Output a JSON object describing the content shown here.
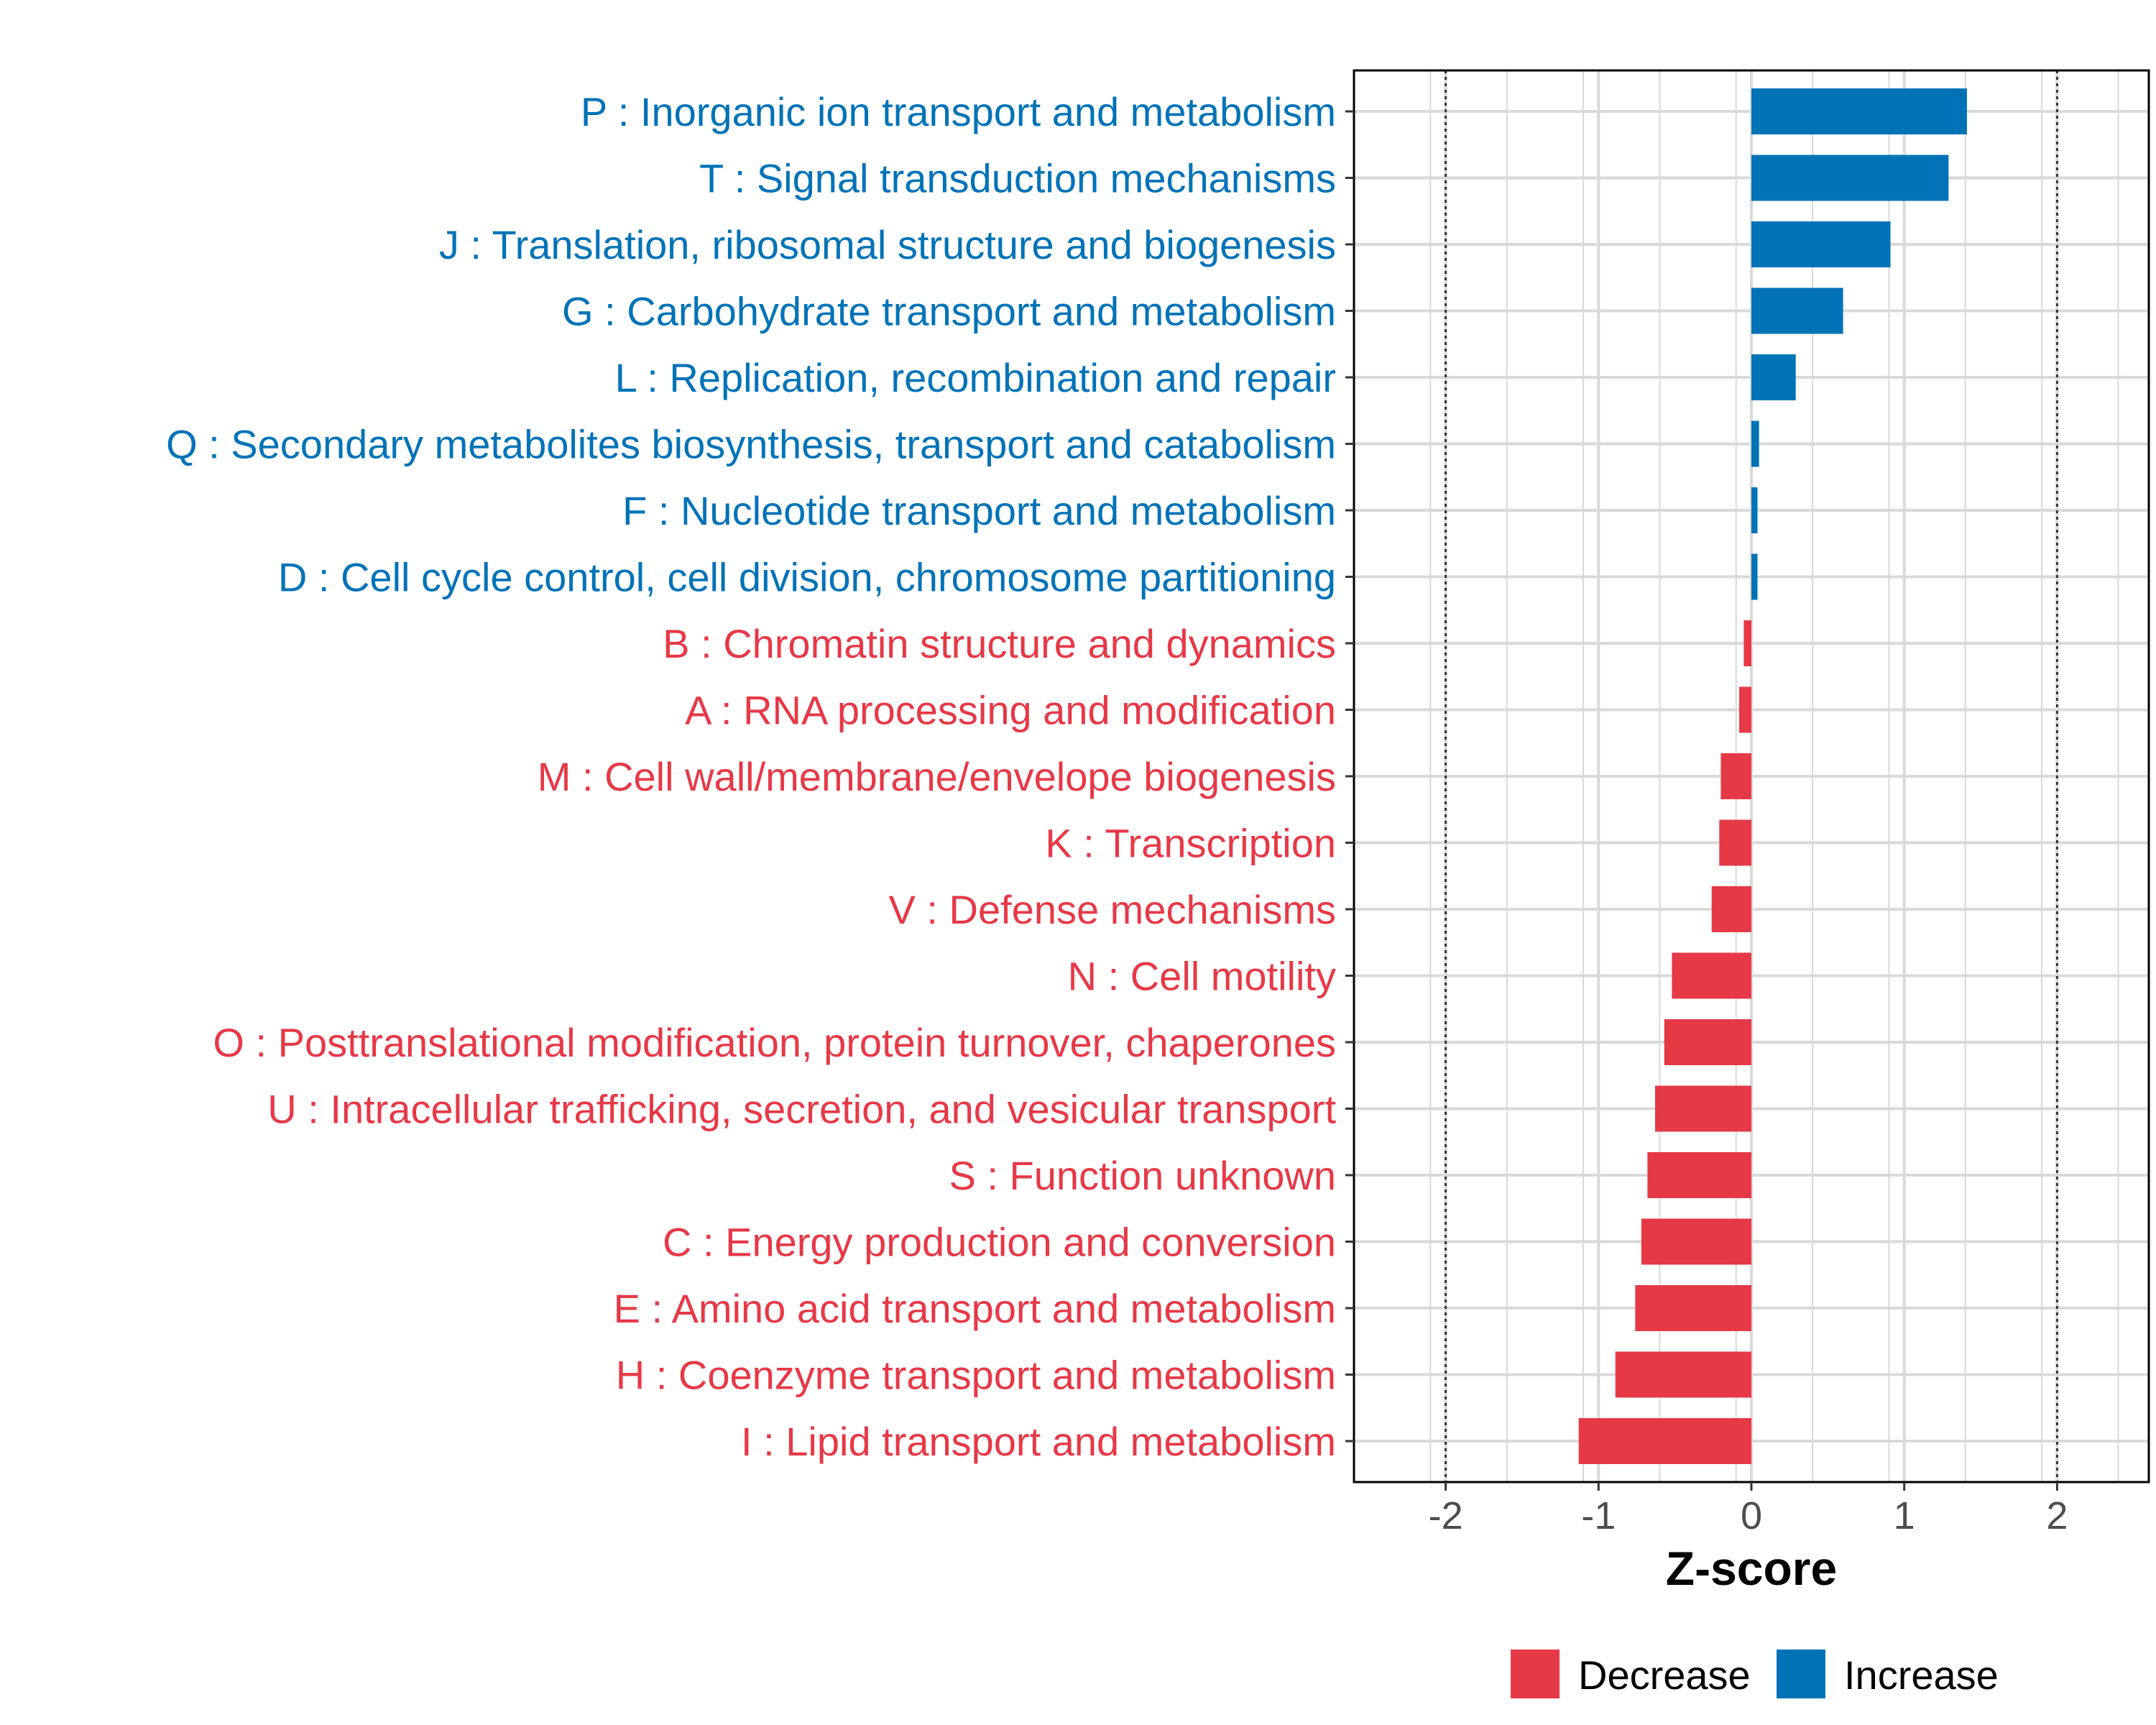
{
  "colors": {
    "decrease": "#e63946",
    "increase": "#0073b7",
    "grid": "#d9d9d9",
    "refline": "#333333"
  },
  "chart_data": {
    "type": "bar",
    "orientation": "horizontal",
    "xlabel": "Z-score",
    "xlim": [
      -2.6,
      2.6
    ],
    "xticks": [
      -2,
      -1,
      0,
      1,
      2
    ],
    "xtick_labels": [
      "-2",
      "-1",
      "0",
      "1",
      "2"
    ],
    "reference_lines": [
      -2,
      2
    ],
    "grid": true,
    "legend_position": "bottom",
    "legend": [
      {
        "key": "decrease",
        "label": "Decrease"
      },
      {
        "key": "increase",
        "label": "Increase"
      }
    ],
    "categories": [
      "P : Inorganic ion transport and metabolism",
      "T : Signal transduction mechanisms",
      "J : Translation, ribosomal structure and biogenesis",
      "G : Carbohydrate transport and metabolism",
      "L : Replication, recombination and repair",
      "Q : Secondary metabolites biosynthesis, transport and catabolism",
      "F : Nucleotide transport and metabolism",
      "D : Cell cycle control, cell division, chromosome partitioning",
      "B : Chromatin structure and dynamics",
      "A : RNA processing and modification",
      "M : Cell wall/membrane/envelope biogenesis",
      "K : Transcription",
      "V : Defense mechanisms",
      "N : Cell motility",
      "O : Posttranslational modification, protein turnover, chaperones",
      "U : Intracellular trafficking, secretion, and vesicular transport",
      "S : Function unknown",
      "C : Energy production and conversion",
      "E : Amino acid transport and metabolism",
      "H : Coenzyme transport and metabolism",
      "I : Lipid transport and metabolism"
    ],
    "values": [
      1.41,
      1.29,
      0.91,
      0.6,
      0.29,
      0.05,
      0.04,
      0.04,
      -0.05,
      -0.08,
      -0.2,
      -0.21,
      -0.26,
      -0.52,
      -0.57,
      -0.63,
      -0.68,
      -0.72,
      -0.76,
      -0.89,
      -1.13
    ]
  }
}
